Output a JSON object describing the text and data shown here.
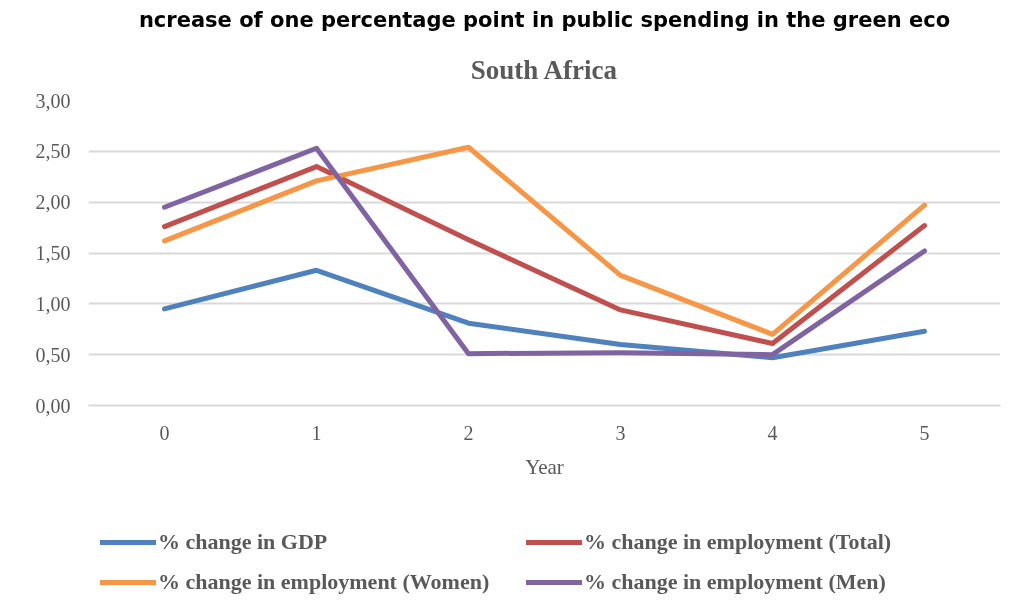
{
  "chart_data": {
    "type": "line",
    "title": "South Africa",
    "xlabel": "Year",
    "annotations": [
      "ncrease of one percentage point in public spending in the green eco"
    ],
    "x": [
      0,
      1,
      2,
      3,
      4,
      5
    ],
    "xlim": [
      -0.5,
      5.5
    ],
    "xticks": [
      0,
      1,
      2,
      3,
      4,
      5
    ],
    "ylim": [
      0,
      3
    ],
    "yticks": [
      {
        "value": 0,
        "label": "0,00"
      },
      {
        "value": 0.5,
        "label": "0,50"
      },
      {
        "value": 1,
        "label": "1,00"
      },
      {
        "value": 1.5,
        "label": "1,50"
      },
      {
        "value": 2,
        "label": "2,00"
      },
      {
        "value": 2.5,
        "label": "2,50"
      },
      {
        "value": 3,
        "label": "3,00"
      }
    ],
    "series": [
      {
        "name": "% change in GDP",
        "color": "#4f81bd",
        "values": [
          0.95,
          1.33,
          0.81,
          0.6,
          0.47,
          0.73
        ]
      },
      {
        "name": "% change in employment (Total)",
        "color": "#c0504d",
        "values": [
          1.76,
          2.35,
          1.63,
          0.94,
          0.61,
          1.77
        ]
      },
      {
        "name": "% change in employment (Women)",
        "color": "#f79646",
        "values": [
          1.62,
          2.21,
          2.54,
          1.28,
          0.7,
          1.97
        ]
      },
      {
        "name": "% change in employment (Men)",
        "color": "#8064a2",
        "values": [
          1.95,
          2.53,
          0.51,
          0.52,
          0.5,
          1.52
        ]
      }
    ],
    "grid": "y",
    "legend": "bottom"
  }
}
